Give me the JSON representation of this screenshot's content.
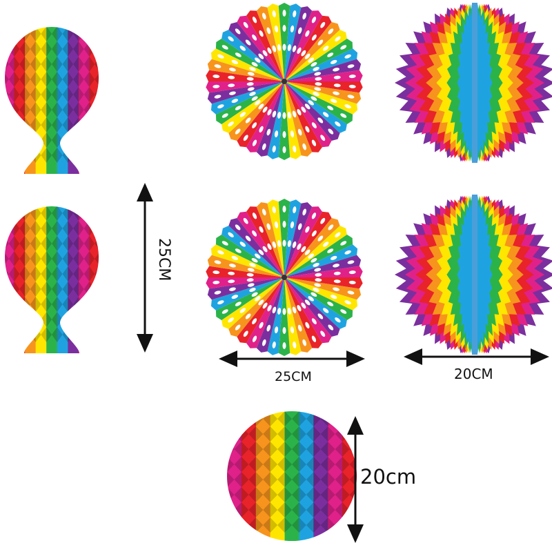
{
  "palette": [
    "#e8232a",
    "#f7941d",
    "#ffe600",
    "#2bb34a",
    "#1fa3e0",
    "#7b2f9e",
    "#e0218a"
  ],
  "labels": {
    "balloon_height": "25CM",
    "fan_width": "25CM",
    "pompom_width": "20CM",
    "ball_height": "20cm"
  },
  "items": [
    {
      "type": "honeycomb-balloon"
    },
    {
      "type": "honeycomb-balloon"
    },
    {
      "type": "paper-fan"
    },
    {
      "type": "paper-fan"
    },
    {
      "type": "spiky-pompom"
    },
    {
      "type": "spiky-pompom"
    },
    {
      "type": "honeycomb-ball"
    }
  ]
}
